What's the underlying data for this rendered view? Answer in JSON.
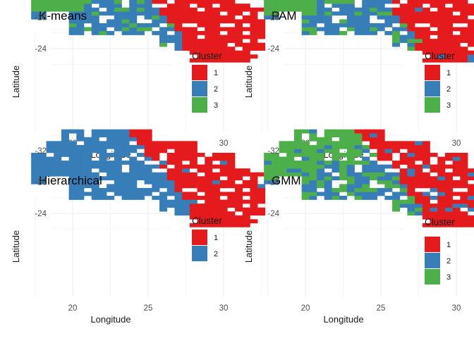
{
  "colors": {
    "1": "#E41A1C",
    "2": "#377EB8",
    "3": "#4DAF4A",
    "grid": "#ebebeb"
  },
  "chart_data": [
    {
      "type": "heatmap",
      "title": "K-means",
      "xlabel": "Longitude",
      "ylabel": "Latitude",
      "xticks": [
        "20",
        "25",
        "30"
      ],
      "yticks": [
        "-24",
        "-28",
        "-32"
      ],
      "xlim": [
        16,
        34
      ],
      "ylim": [
        -35.5,
        -21.5
      ],
      "legend": {
        "title": "Cluster",
        "labels": [
          "1",
          "2",
          "3"
        ],
        "placement": "right"
      },
      "rule": {
        "type": "kmeans"
      }
    },
    {
      "type": "heatmap",
      "title": "PAM",
      "xlabel": "Longitude",
      "ylabel": "Latitude",
      "xticks": [
        "20",
        "25",
        "30"
      ],
      "yticks": [
        "-24",
        "-28",
        "-32"
      ],
      "xlim": [
        16,
        34
      ],
      "ylim": [
        -35.5,
        -21.5
      ],
      "legend": {
        "title": "Cluster",
        "labels": [
          "1",
          "2",
          "3"
        ],
        "placement": "right"
      },
      "rule": {
        "type": "pam"
      }
    },
    {
      "type": "heatmap",
      "title": "Hierarchical",
      "xlabel": "Longitude",
      "ylabel": "Latitude",
      "xticks": [
        "20",
        "25",
        "30"
      ],
      "yticks": [
        "-24",
        "-28",
        "-32"
      ],
      "xlim": [
        16,
        34
      ],
      "ylim": [
        -35.5,
        -21.5
      ],
      "legend": {
        "title": "Cluster",
        "labels": [
          "1",
          "2"
        ],
        "placement": "right"
      },
      "rule": {
        "type": "hier"
      }
    },
    {
      "type": "heatmap",
      "title": "GMM",
      "xlabel": "Longitude",
      "ylabel": "Latitude",
      "xticks": [
        "20",
        "25",
        "30"
      ],
      "yticks": [
        "-24",
        "-28",
        "-32"
      ],
      "xlim": [
        16,
        34
      ],
      "ylim": [
        -35.5,
        -21.5
      ],
      "legend": {
        "title": "Cluster",
        "labels": [
          "1",
          "2",
          "3"
        ],
        "placement": "right"
      },
      "rule": {
        "type": "gmm"
      }
    }
  ]
}
